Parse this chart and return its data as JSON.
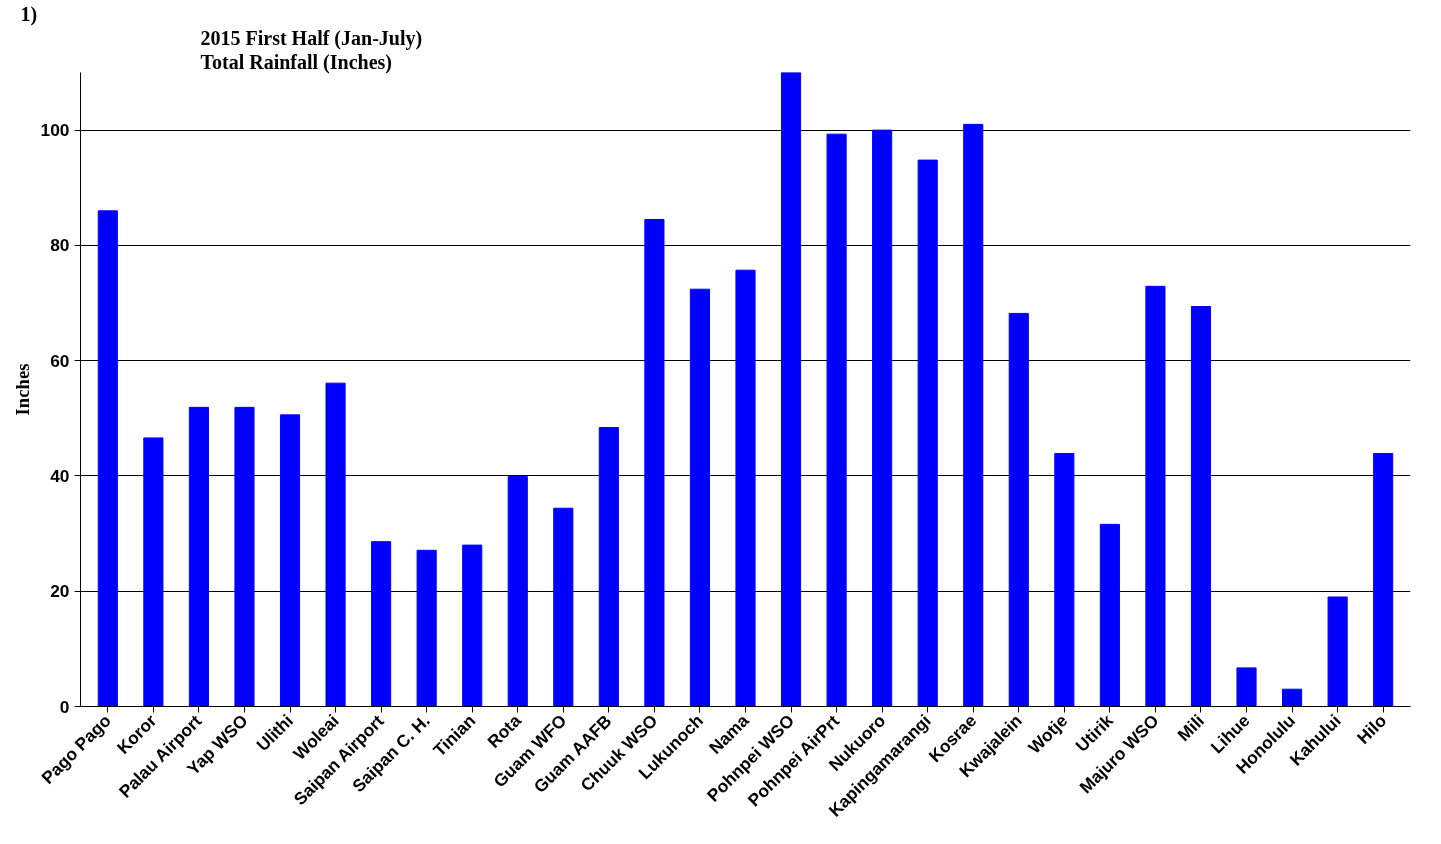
{
  "chart_data": {
    "type": "bar",
    "title": "2015 First Half (Jan-July)",
    "subtitle": "Total Rainfall (Inches)",
    "ylabel": "Inches",
    "annotations": [
      "1)"
    ],
    "categories": [
      "Pago Pago",
      "Koror",
      "Palau Airport",
      "Yap WSO",
      "Ulithi",
      "Woleai",
      "Saipan Airport",
      "Saipan C. H.",
      "Tinian",
      "Rota",
      "Guam WFO",
      "Guam AAFB",
      "Chuuk WSO",
      "Lukunoch",
      "Nama",
      "Pohnpei WSO",
      "Pohnpei AirPrt",
      "Nukuoro",
      "Kapingamarangi",
      "Kosrae",
      "Kwajalein",
      "Wotje",
      "Utirik",
      "Majuro WSO",
      "Mili",
      "Lihue",
      "Honolulu",
      "Kahului",
      "Hilo"
    ],
    "values": [
      86,
      46.6,
      51.9,
      51.9,
      50.6,
      56.1,
      28.6,
      27.1,
      28.0,
      39.9,
      34.4,
      48.4,
      84.5,
      72.4,
      75.7,
      110,
      99.3,
      100,
      94.8,
      101,
      68.2,
      43.9,
      31.6,
      72.9,
      69.4,
      6.7,
      3.0,
      19.0,
      43.9
    ],
    "color": "#0000ff",
    "ylim": [
      0,
      110
    ],
    "yticks": [
      0,
      20,
      40,
      60,
      80,
      100
    ],
    "grid": "y"
  }
}
